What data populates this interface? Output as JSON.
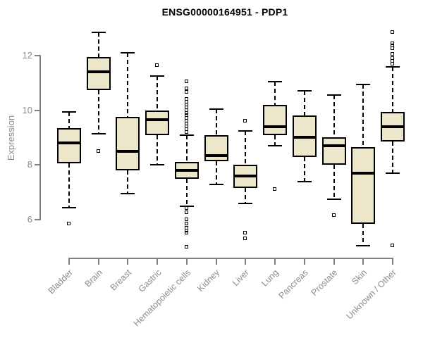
{
  "chart_data": {
    "type": "boxplot",
    "title": "ENSG00000164951 - PDP1",
    "ylabel": "Expression",
    "xlabel": "",
    "yticks": [
      6,
      8,
      10,
      12
    ],
    "ylim": [
      4.7,
      13.1
    ],
    "grid": false,
    "legend": "none",
    "categories": [
      "Bladder",
      "Brain",
      "Breast",
      "Gastric",
      "Hematopoietic cells",
      "Kidney",
      "Liver",
      "Lung",
      "Pancreas",
      "Prostate",
      "Skin",
      "Unknown / Other"
    ],
    "series": [
      {
        "name": "Bladder",
        "whisker_low": 6.45,
        "q1": 8.05,
        "median": 8.8,
        "q3": 9.35,
        "whisker_high": 9.95,
        "outliers": [
          5.85
        ]
      },
      {
        "name": "Brain",
        "whisker_low": 9.15,
        "q1": 10.75,
        "median": 11.4,
        "q3": 11.95,
        "whisker_high": 12.85,
        "outliers": [
          8.5
        ]
      },
      {
        "name": "Breast",
        "whisker_low": 6.95,
        "q1": 7.8,
        "median": 8.5,
        "q3": 9.75,
        "whisker_high": 12.1,
        "outliers": []
      },
      {
        "name": "Gastric",
        "whisker_low": 8.0,
        "q1": 9.1,
        "median": 9.65,
        "q3": 10.0,
        "whisker_high": 11.25,
        "outliers": [
          11.65
        ]
      },
      {
        "name": "Hematopoietic cells",
        "whisker_low": 6.5,
        "q1": 7.5,
        "median": 7.8,
        "q3": 8.1,
        "whisker_high": 9.1,
        "outliers": [
          11.05,
          10.8,
          10.65,
          10.4,
          10.3,
          10.2,
          10.1,
          10.0,
          9.9,
          9.8,
          9.7,
          9.6,
          9.5,
          9.4,
          9.3,
          9.2,
          6.4,
          6.25,
          6.0,
          5.85,
          5.7,
          5.6,
          5.5,
          5.0
        ]
      },
      {
        "name": "Kidney",
        "whisker_low": 7.3,
        "q1": 8.15,
        "median": 8.35,
        "q3": 9.1,
        "whisker_high": 10.05,
        "outliers": []
      },
      {
        "name": "Liver",
        "whisker_low": 6.6,
        "q1": 7.15,
        "median": 7.6,
        "q3": 8.0,
        "whisker_high": 9.25,
        "outliers": [
          9.6,
          5.5,
          5.3
        ]
      },
      {
        "name": "Lung",
        "whisker_low": 8.7,
        "q1": 9.1,
        "median": 9.4,
        "q3": 10.2,
        "whisker_high": 11.05,
        "outliers": [
          7.1
        ]
      },
      {
        "name": "Pancreas",
        "whisker_low": 7.4,
        "q1": 8.3,
        "median": 9.0,
        "q3": 9.8,
        "whisker_high": 10.7,
        "outliers": []
      },
      {
        "name": "Prostate",
        "whisker_low": 6.75,
        "q1": 8.0,
        "median": 8.7,
        "q3": 9.0,
        "whisker_high": 10.55,
        "outliers": [
          6.15
        ]
      },
      {
        "name": "Skin",
        "whisker_low": 5.05,
        "q1": 5.85,
        "median": 7.7,
        "q3": 8.65,
        "whisker_high": 10.95,
        "outliers": []
      },
      {
        "name": "Unknown / Other",
        "whisker_low": 7.7,
        "q1": 8.85,
        "median": 9.4,
        "q3": 9.95,
        "whisker_high": 11.6,
        "outliers": [
          12.85,
          12.45,
          12.35,
          12.25,
          12.05,
          11.9,
          11.8,
          11.7,
          5.05
        ]
      }
    ],
    "colors": {
      "box_fill": "#ece6cb",
      "box_border": "#000000",
      "median": "#000000",
      "whisker": "#000000",
      "outlier": "#000000",
      "axis": "#808080",
      "tick_label": "#8c8c8c",
      "title": "#000000",
      "background": "#ffffff"
    }
  }
}
